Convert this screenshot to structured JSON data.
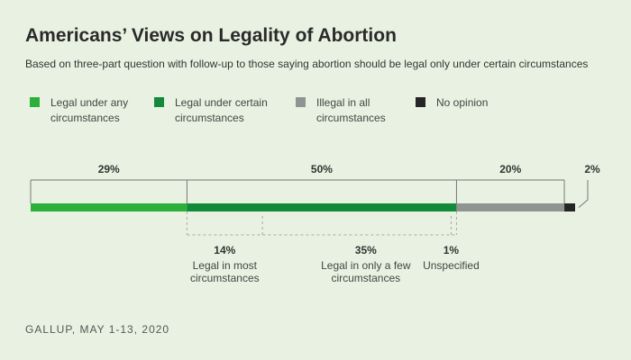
{
  "title": "Americans’ Views on Legality of Abortion",
  "subtitle": "Based on three-part question with follow-up to those saying abortion should be legal only under certain circumstances",
  "footer": "GALLUP, MAY 1-13, 2020",
  "legend": [
    {
      "label": "Legal under any\ncircumstances",
      "color": "#2db03a"
    },
    {
      "label": "Legal under certain\ncircumstances",
      "color": "#138a3a"
    },
    {
      "label": "Illegal in all\ncircumstances",
      "color": "#8f9491"
    },
    {
      "label": "No opinion",
      "color": "#252525"
    }
  ],
  "chart_data": {
    "type": "bar",
    "orientation": "horizontal-stacked",
    "series": [
      {
        "name": "Legal under any circumstances",
        "value": 29,
        "label": "29%",
        "color": "#2db03a"
      },
      {
        "name": "Legal under certain circumstances",
        "value": 50,
        "label": "50%",
        "color": "#138a3a"
      },
      {
        "name": "Illegal in all circumstances",
        "value": 20,
        "label": "20%",
        "color": "#8f9491"
      },
      {
        "name": "No opinion",
        "value": 2,
        "label": "2%",
        "color": "#252525"
      }
    ],
    "breakdown": {
      "parent": "Legal under certain circumstances",
      "items": [
        {
          "value": 14,
          "label": "14%",
          "desc": [
            "Legal in most",
            "circumstances"
          ]
        },
        {
          "value": 35,
          "label": "35%",
          "desc": [
            "Legal in only a few",
            "circumstances"
          ]
        },
        {
          "value": 1,
          "label": "1%",
          "desc": [
            "Unspecified"
          ]
        }
      ]
    }
  }
}
